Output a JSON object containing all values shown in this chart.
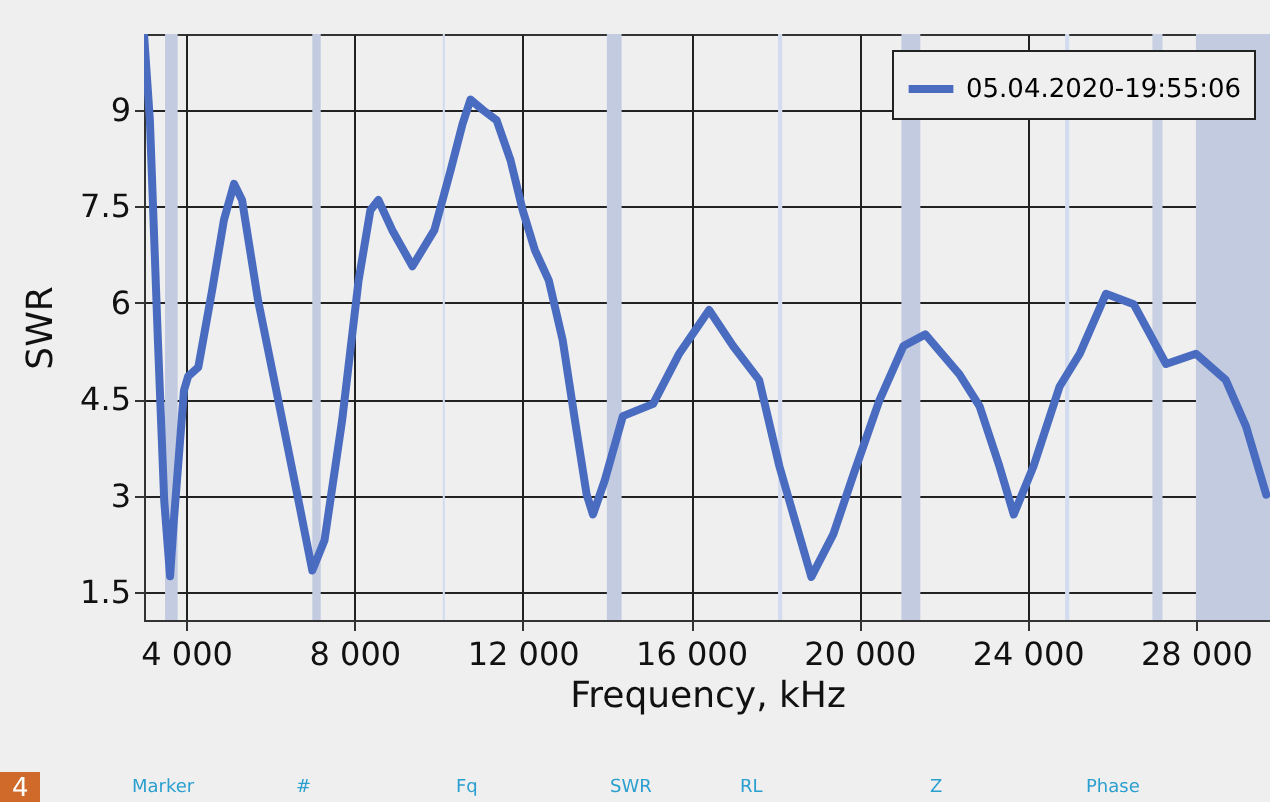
{
  "chart_data": {
    "type": "line",
    "xlabel": "Frequency, kHz",
    "ylabel": "SWR",
    "x": [
      3000,
      3140,
      3330,
      3480,
      3620,
      3710,
      3950,
      4050,
      4290,
      4620,
      4900,
      5140,
      5330,
      5710,
      6190,
      6670,
      7000,
      7290,
      7710,
      8100,
      8380,
      8570,
      8900,
      9380,
      9900,
      10290,
      10570,
      10760,
      11050,
      11380,
      11710,
      12000,
      12290,
      12620,
      12950,
      13240,
      13520,
      13670,
      13950,
      14380,
      15100,
      15710,
      16430,
      17000,
      17620,
      18100,
      18860,
      19380,
      19860,
      20480,
      21050,
      21570,
      22380,
      22860,
      23330,
      23670,
      24140,
      24760,
      25240,
      25860,
      26520,
      27290,
      28000,
      28710,
      29190,
      29670
    ],
    "series": [
      {
        "name": "05.04.2020-19:55:06",
        "color": "#4a6cc0",
        "values": [
          10.18,
          8.84,
          5.42,
          2.93,
          1.75,
          2.62,
          4.64,
          4.86,
          5.0,
          6.2,
          7.29,
          7.85,
          7.6,
          6.04,
          4.49,
          2.93,
          1.84,
          2.31,
          4.18,
          6.35,
          7.44,
          7.6,
          7.13,
          6.57,
          7.13,
          8.07,
          8.78,
          9.16,
          9.0,
          8.84,
          8.22,
          7.44,
          6.82,
          6.35,
          5.42,
          4.18,
          3.02,
          2.71,
          3.24,
          4.24,
          4.43,
          5.2,
          5.89,
          5.33,
          4.8,
          3.46,
          1.74,
          2.4,
          3.33,
          4.49,
          5.33,
          5.51,
          4.89,
          4.39,
          3.46,
          2.71,
          3.46,
          4.7,
          5.21,
          6.14,
          5.98,
          5.05,
          5.21,
          4.8,
          4.08,
          3.02
        ]
      }
    ],
    "xlim": [
      3000,
      29760
    ],
    "ylim": [
      1.07,
      10.18
    ],
    "xticks": [
      {
        "value": 4000,
        "label": "4 000"
      },
      {
        "value": 8000,
        "label": "8 000"
      },
      {
        "value": 12000,
        "label": "12 000"
      },
      {
        "value": 16000,
        "label": "16 000"
      },
      {
        "value": 20000,
        "label": "20 000"
      },
      {
        "value": 24000,
        "label": "24 000"
      },
      {
        "value": 28000,
        "label": "28 000"
      }
    ],
    "yticks": [
      1.5,
      3,
      4.5,
      6,
      7.5,
      9
    ],
    "grid": true,
    "legend": "top right",
    "line_style": "solid",
    "marker": "none",
    "bands": [
      {
        "axis": "x",
        "from": 3500,
        "to": 3800,
        "color": "#c3cbe0"
      },
      {
        "axis": "x",
        "from": 7000,
        "to": 7200,
        "color": "#c3cbe0"
      },
      {
        "axis": "x",
        "from": 10100,
        "to": 10150,
        "color": "#d3dbee"
      },
      {
        "axis": "x",
        "from": 14000,
        "to": 14350,
        "color": "#c3cbe0"
      },
      {
        "axis": "x",
        "from": 18068,
        "to": 18168,
        "color": "#d3dbee"
      },
      {
        "axis": "x",
        "from": 21000,
        "to": 21450,
        "color": "#c3cbe0"
      },
      {
        "axis": "x",
        "from": 24890,
        "to": 24990,
        "color": "#d3dbee"
      },
      {
        "axis": "x",
        "from": 26965,
        "to": 27205,
        "color": "#c8d0e4"
      },
      {
        "axis": "x",
        "from": 28000,
        "to": 29760,
        "color": "#c3cbe0"
      }
    ],
    "annotations": [
      "4",
      "Marker",
      "#",
      "Fq",
      "SWR",
      "RL",
      "Z",
      "Phase"
    ]
  }
}
